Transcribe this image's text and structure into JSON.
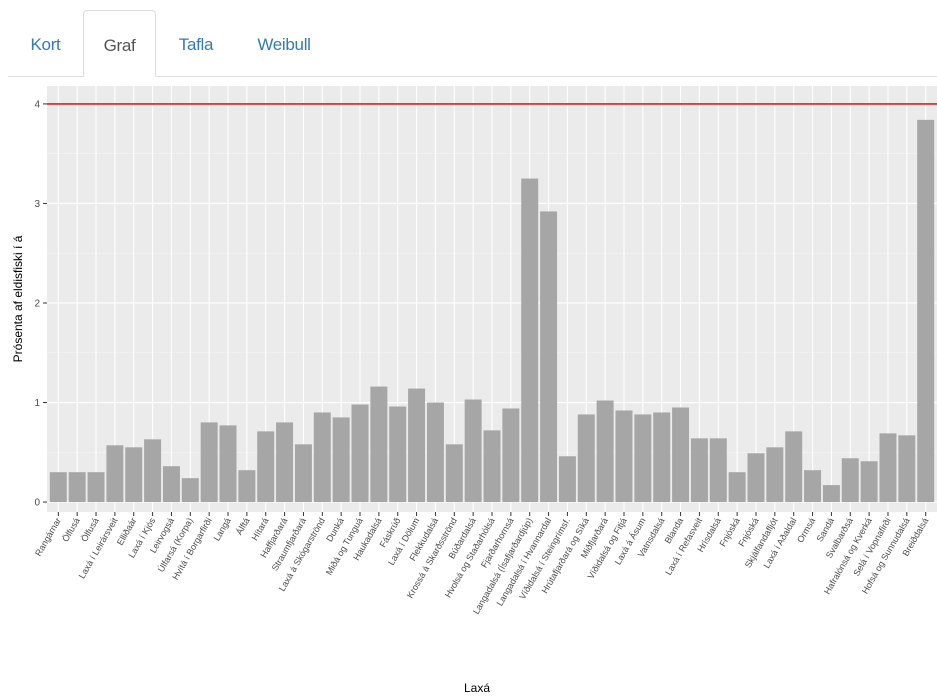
{
  "tabs": [
    {
      "label": "Kort",
      "active": false
    },
    {
      "label": "Graf",
      "active": true
    },
    {
      "label": "Tafla",
      "active": false
    },
    {
      "label": "Weibull",
      "active": false
    }
  ],
  "chart_data": {
    "type": "bar",
    "xlabel": "Laxá",
    "ylabel": "Prósenta af eldisfiski í á",
    "ylim": [
      -0.1,
      4.18
    ],
    "yticks": [
      0,
      1,
      2,
      3,
      4
    ],
    "grid": true,
    "bar_color": "#a6a6a6",
    "panel_color": "#ebebeb",
    "threshold_line": {
      "value": 4,
      "color": "#e03b3b"
    },
    "categories": [
      "Rangárnar",
      "Ölfusá",
      "Ölfusá",
      "Laxá í Leirársveit",
      "Elliðaár",
      "Laxá í Kjós",
      "Leirvogsá",
      "Úlfarsá (Korpa)",
      "Hvítá í Borgarfirði",
      "Langá",
      "Álftá",
      "Hítará",
      "Haffjarðará",
      "Straumfjarðará",
      "Laxá á Skógarströnd",
      "Dunká",
      "Miðá og Tunguá",
      "Haukadalsá",
      "Fáskrúð",
      "Laxá í Dölum",
      "Flekkudalsá",
      "Krossá á Skarðsströnd",
      "Búðardalsá",
      "Hvolsá og Staðarhólsá",
      "Fjarðarhornsá",
      "Langadalsá (Ísafjarðardjúp)",
      "Langadalsá í Hvannardal",
      "Víðidalsá í Steingrímsf.",
      "Hrútafjarðará og Síká",
      "Miðfjarðará",
      "Víðidalsá og Fitjá",
      "Laxá á Ásum",
      "Vatnsdalsá",
      "Blanda",
      "Laxá í Refasveit",
      "Hrísdalsá",
      "Fnjóská",
      "Fnjóská",
      "Skjálfandafljót",
      "Laxá í Aðaldal",
      "Ormsá",
      "Sandá",
      "Svalbarðsá",
      "Hafralónsá og Kverká",
      "Selá í Vopnafirði",
      "Hofsá og Sunnudalsá",
      "Breiðdalsá"
    ],
    "values": [
      0.3,
      0.3,
      0.3,
      0.57,
      0.55,
      0.63,
      0.36,
      0.24,
      0.8,
      0.77,
      0.32,
      0.71,
      0.8,
      0.58,
      0.9,
      0.85,
      0.98,
      1.16,
      0.96,
      1.14,
      1.0,
      0.58,
      1.03,
      0.72,
      0.94,
      3.25,
      2.92,
      0.46,
      0.88,
      1.02,
      0.92,
      0.88,
      0.9,
      0.95,
      0.64,
      0.64,
      0.3,
      0.49,
      0.55,
      0.71,
      0.32,
      0.17,
      0.44,
      0.41,
      0.69,
      0.67,
      3.84
    ]
  }
}
